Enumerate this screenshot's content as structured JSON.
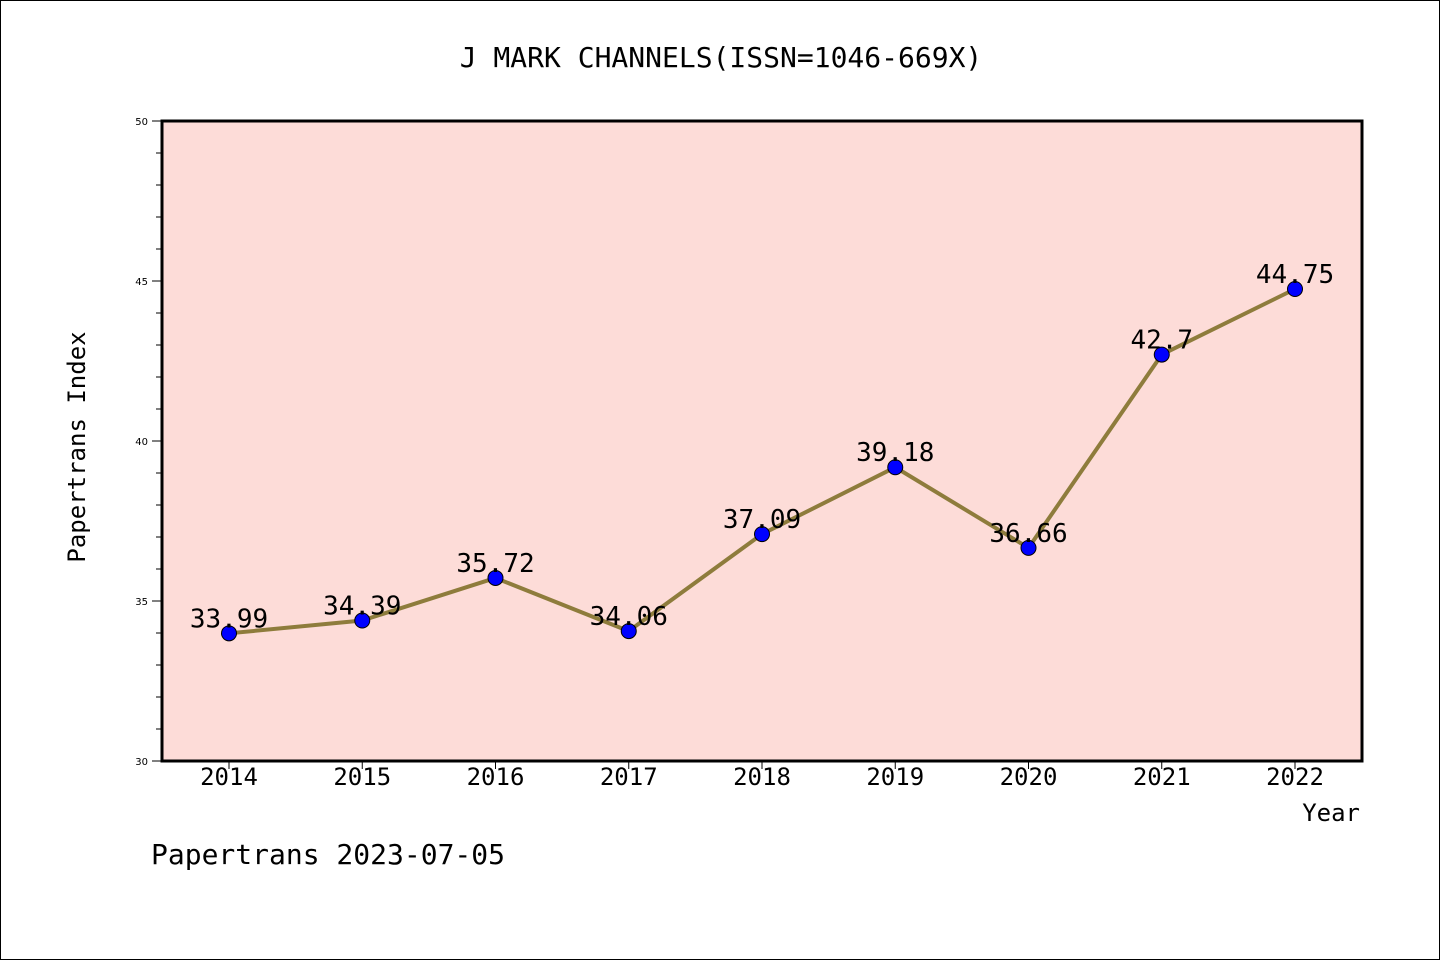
{
  "chart_data": {
    "type": "line",
    "title": "J MARK CHANNELS(ISSN=1046-669X)",
    "xlabel": "Year",
    "ylabel": "Papertrans Index",
    "categories": [
      "2014",
      "2015",
      "2016",
      "2017",
      "2018",
      "2019",
      "2020",
      "2021",
      "2022"
    ],
    "values": [
      33.99,
      34.39,
      35.72,
      34.06,
      37.09,
      39.18,
      36.66,
      42.7,
      44.75
    ],
    "data_labels": [
      "33.99",
      "34.39",
      "35.72",
      "34.06",
      "37.09",
      "39.18",
      "36.66",
      "42.7",
      "44.75"
    ],
    "ylim": [
      30,
      50
    ],
    "yticks": [
      "30",
      "35",
      "40",
      "45",
      "50"
    ],
    "grid": false,
    "legend": "none",
    "colors": {
      "plot_background": "#FDDCD8",
      "line": "#8E7C3C",
      "marker": "#0000FF"
    }
  },
  "footer": {
    "text": "Papertrans 2023-07-05"
  }
}
